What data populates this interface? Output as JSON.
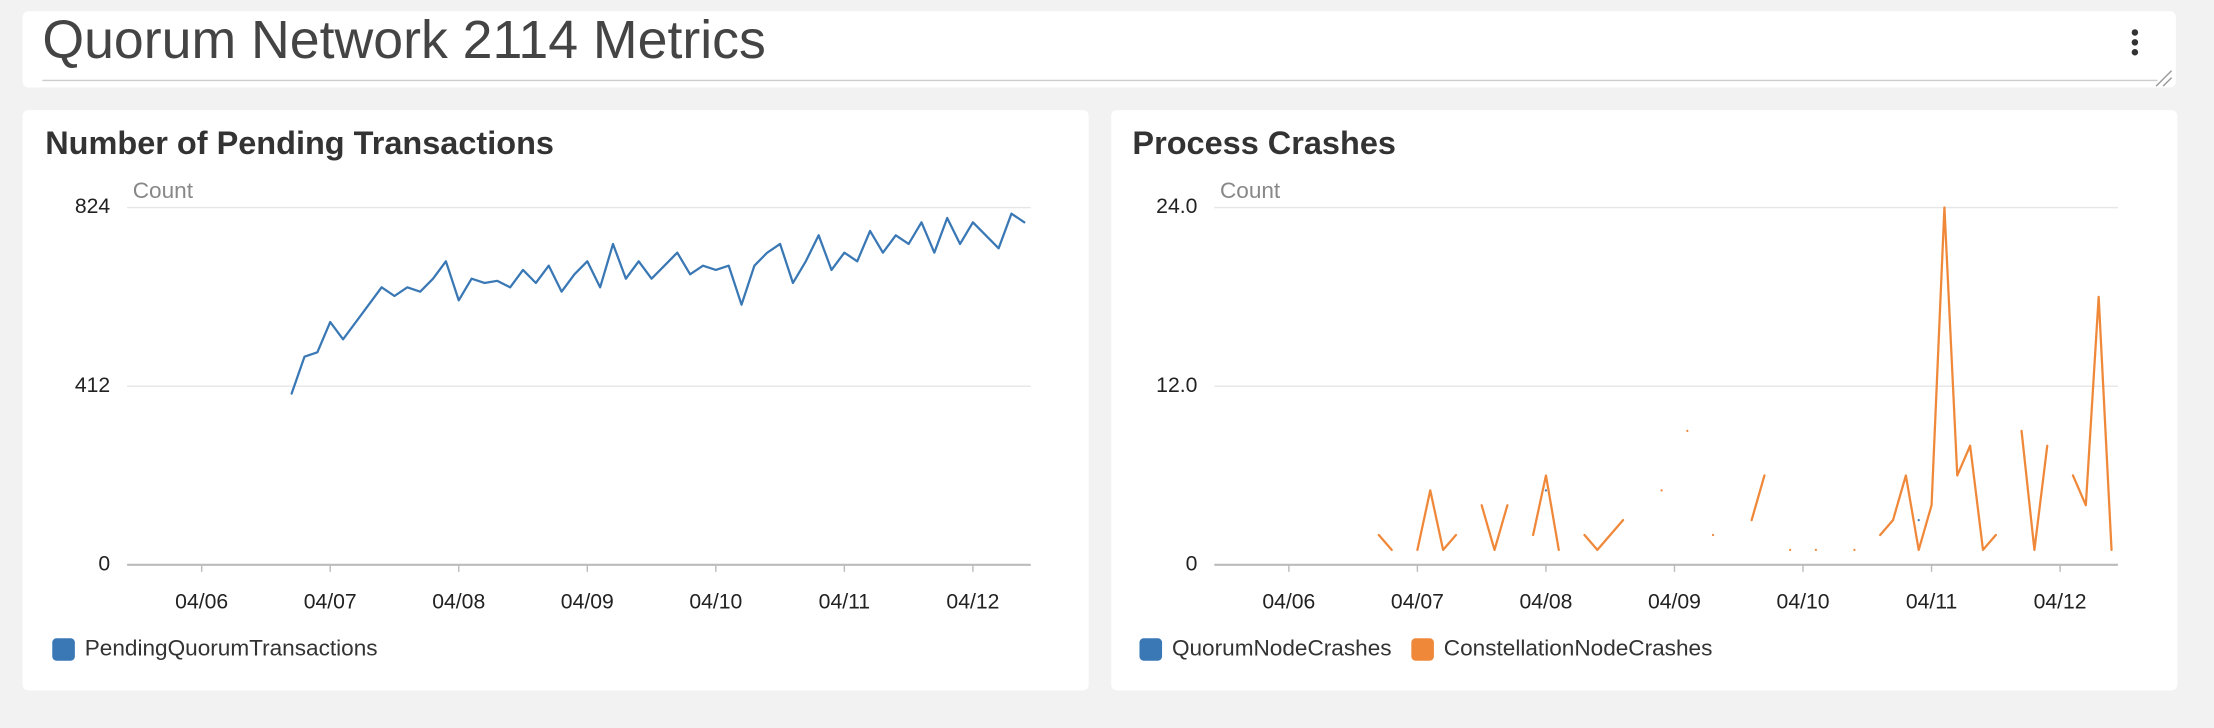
{
  "header": {
    "title": "Quorum Network 2114 Metrics"
  },
  "chart_data": [
    {
      "type": "line",
      "title": "Number of Pending Transactions",
      "ylabel": "Count",
      "x": [
        6.7,
        6.8,
        6.9,
        7.0,
        7.1,
        7.2,
        7.3,
        7.4,
        7.5,
        7.6,
        7.7,
        7.8,
        7.9,
        8.0,
        8.1,
        8.2,
        8.3,
        8.4,
        8.5,
        8.6,
        8.7,
        8.8,
        8.9,
        9.0,
        9.1,
        9.2,
        9.3,
        9.4,
        9.5,
        9.6,
        9.7,
        9.8,
        9.9,
        10.0,
        10.1,
        10.2,
        10.3,
        10.4,
        10.5,
        10.6,
        10.7,
        10.8,
        10.9,
        11.0,
        11.1,
        11.2,
        11.3,
        11.4,
        11.5,
        11.6,
        11.7,
        11.8,
        11.9,
        12.0,
        12.1,
        12.2,
        12.3,
        12.4
      ],
      "series": [
        {
          "name": "PendingQuorumTransactions",
          "color": "#3a78b5",
          "values": [
            395,
            480,
            490,
            560,
            520,
            560,
            600,
            640,
            620,
            640,
            630,
            660,
            700,
            610,
            660,
            650,
            655,
            640,
            680,
            650,
            690,
            630,
            670,
            700,
            640,
            740,
            660,
            700,
            660,
            690,
            720,
            670,
            690,
            680,
            690,
            600,
            690,
            720,
            740,
            650,
            700,
            760,
            680,
            720,
            700,
            770,
            720,
            760,
            740,
            790,
            720,
            800,
            740,
            790,
            760,
            730,
            810,
            790
          ]
        }
      ],
      "xlim": [
        5.42,
        12.45
      ],
      "xticks": [
        {
          "value": 6,
          "label": "04/06"
        },
        {
          "value": 7,
          "label": "04/07"
        },
        {
          "value": 8,
          "label": "04/08"
        },
        {
          "value": 9,
          "label": "04/09"
        },
        {
          "value": 10,
          "label": "04/10"
        },
        {
          "value": 11,
          "label": "04/11"
        },
        {
          "value": 12,
          "label": "04/12"
        }
      ],
      "ylim": [
        0,
        824
      ],
      "yticks": [
        0,
        412,
        824
      ],
      "grid": true
    },
    {
      "type": "line",
      "title": "Process Crashes",
      "ylabel": "Count",
      "x": [
        6.7,
        6.8,
        6.9,
        7.0,
        7.1,
        7.2,
        7.3,
        7.4,
        7.5,
        7.6,
        7.7,
        7.8,
        7.9,
        8.0,
        8.1,
        8.2,
        8.3,
        8.4,
        8.5,
        8.6,
        8.7,
        8.8,
        8.9,
        9.0,
        9.1,
        9.2,
        9.3,
        9.4,
        9.5,
        9.6,
        9.7,
        9.8,
        9.9,
        10.0,
        10.1,
        10.2,
        10.3,
        10.4,
        10.5,
        10.6,
        10.7,
        10.8,
        10.9,
        11.0,
        11.1,
        11.2,
        11.3,
        11.4,
        11.5,
        11.6,
        11.7,
        11.8,
        11.9,
        12.0,
        12.1,
        12.2,
        12.3,
        12.4
      ],
      "series": [
        {
          "name": "QuorumNodeCrashes",
          "color": "#3a78b5",
          "values": [
            null,
            null,
            null,
            null,
            null,
            null,
            null,
            null,
            null,
            null,
            null,
            null,
            null,
            5,
            null,
            null,
            null,
            null,
            null,
            null,
            null,
            null,
            null,
            null,
            null,
            null,
            null,
            null,
            null,
            null,
            null,
            null,
            null,
            null,
            null,
            null,
            null,
            null,
            null,
            null,
            null,
            null,
            3,
            null,
            null,
            null,
            null,
            null,
            null,
            null,
            null,
            null,
            null,
            null,
            null,
            null,
            null,
            null
          ]
        },
        {
          "name": "ConstellationNodeCrashes",
          "color": "#f0883a",
          "values": [
            2,
            1,
            null,
            1,
            5,
            1,
            2,
            null,
            4,
            1,
            4,
            null,
            2,
            6,
            1,
            null,
            2,
            1,
            2,
            3,
            null,
            null,
            5,
            null,
            9,
            null,
            2,
            null,
            null,
            3,
            6,
            null,
            1,
            null,
            1,
            null,
            null,
            1,
            null,
            2,
            3,
            6,
            1,
            4,
            24,
            6,
            8,
            1,
            2,
            null,
            9,
            1,
            8,
            null,
            6,
            4,
            18,
            1
          ]
        }
      ],
      "xlim": [
        5.42,
        12.45
      ],
      "xticks": [
        {
          "value": 6,
          "label": "04/06"
        },
        {
          "value": 7,
          "label": "04/07"
        },
        {
          "value": 8,
          "label": "04/08"
        },
        {
          "value": 9,
          "label": "04/09"
        },
        {
          "value": 10,
          "label": "04/10"
        },
        {
          "value": 11,
          "label": "04/11"
        },
        {
          "value": 12,
          "label": "04/12"
        }
      ],
      "ylim": [
        0,
        24
      ],
      "yticks": [
        0,
        {
          "value": 12,
          "label": "12.0"
        },
        {
          "value": 24,
          "label": "24.0"
        }
      ],
      "grid": true
    }
  ]
}
